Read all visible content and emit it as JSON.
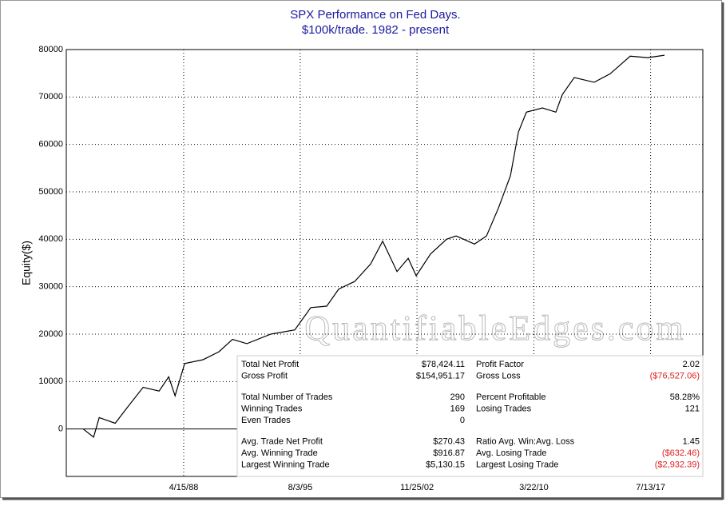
{
  "chart_data": {
    "type": "line",
    "title": "SPX Performance on Fed Days.",
    "subtitle": "$100k/trade. 1982 - present",
    "y_label": "Equity($)",
    "watermark": "QuantifiableEdges.com",
    "color": "#000000",
    "grid": true,
    "xlim": [
      1980.94,
      2020.8
    ],
    "ylim": [
      -10000,
      80000
    ],
    "yticks": [
      0,
      10000,
      20000,
      30000,
      40000,
      50000,
      60000,
      70000,
      80000
    ],
    "xticks": [
      {
        "value": 1988.29,
        "label": "4/15/88"
      },
      {
        "value": 1995.59,
        "label": "8/3/95"
      },
      {
        "value": 2002.9,
        "label": "11/25/02"
      },
      {
        "value": 2010.22,
        "label": "3/22/10"
      },
      {
        "value": 2017.53,
        "label": "7/13/17"
      }
    ],
    "x": [
      1982.0,
      1982.65,
      1983.0,
      1984.0,
      1984.75,
      1985.75,
      1986.75,
      1987.35,
      1987.75,
      1988.35,
      1989.5,
      1990.5,
      1991.35,
      1992.25,
      1993.75,
      1995.25,
      1996.25,
      1997.25,
      1998.0,
      1999.0,
      2000.0,
      2000.75,
      2001.65,
      2002.35,
      2002.85,
      2003.75,
      2004.75,
      2005.35,
      2006.5,
      2007.25,
      2008.0,
      2008.75,
      2009.25,
      2009.75,
      2010.75,
      2011.6,
      2012.0,
      2012.75,
      2014.0,
      2015.0,
      2016.25,
      2017.35,
      2018.4
    ],
    "values": [
      0,
      -1700,
      2400,
      1200,
      4500,
      8800,
      8000,
      11000,
      7000,
      13800,
      14600,
      16300,
      18900,
      18000,
      20000,
      20900,
      25600,
      25900,
      29500,
      31100,
      34800,
      39600,
      33200,
      36000,
      32300,
      36900,
      40000,
      40700,
      39000,
      40700,
      46600,
      53400,
      62600,
      66800,
      67700,
      66800,
      70500,
      74100,
      73100,
      74900,
      78600,
      78300,
      78800
    ]
  },
  "stats_table": {
    "groups": [
      [
        [
          "Total Net Profit",
          "$78,424.11",
          "Profit Factor",
          "2.02"
        ],
        [
          "Gross Profit",
          "$154,951.17",
          "Gross Loss",
          "($76,527.06)"
        ]
      ],
      [
        [
          "Total Number of Trades",
          "290",
          "Percent Profitable",
          "58.28%"
        ],
        [
          "Winning Trades",
          "169",
          "Losing Trades",
          "121"
        ],
        [
          "Even Trades",
          "0"
        ]
      ],
      [
        [
          "Avg. Trade Net Profit",
          "$270.43",
          "Ratio Avg. Win:Avg. Loss",
          "1.45"
        ],
        [
          "Avg. Winning Trade",
          "$916.87",
          "Avg. Losing Trade",
          "($632.46)"
        ],
        [
          "Largest Winning Trade",
          "$5,130.15",
          "Largest Losing Trade",
          "($2,932.39)"
        ]
      ]
    ]
  }
}
